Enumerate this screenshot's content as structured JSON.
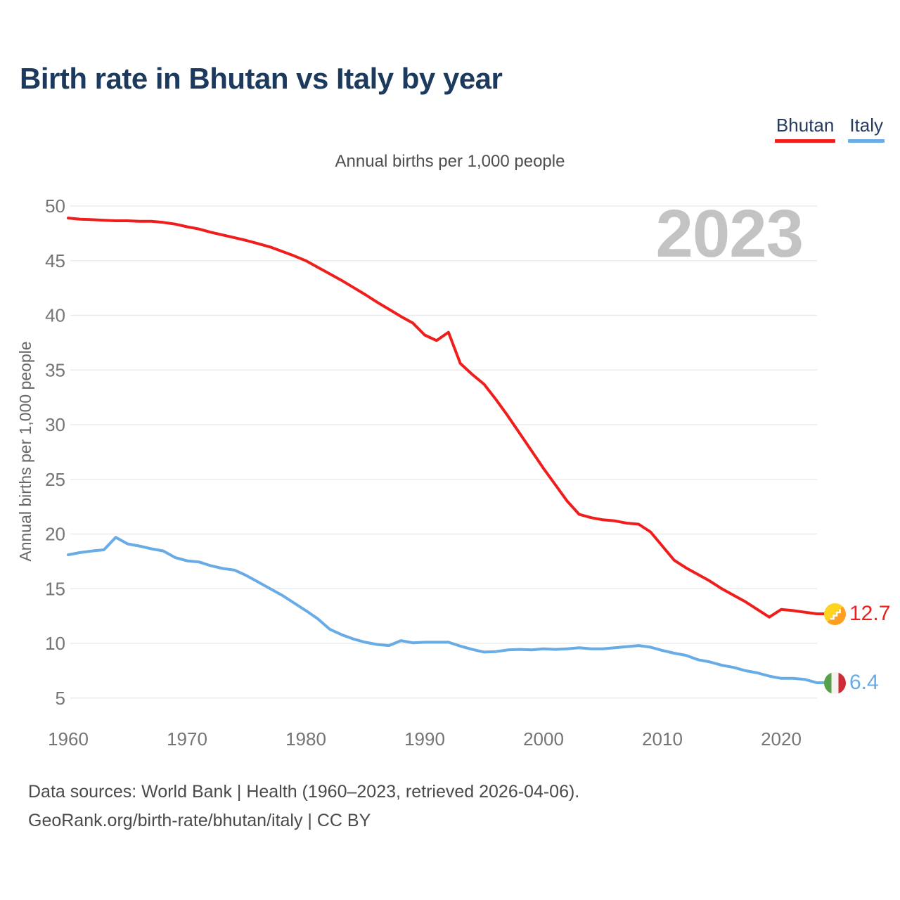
{
  "header": {
    "title": "Birth rate in Bhutan vs Italy by year",
    "watermark": "2023"
  },
  "chart_data": {
    "type": "line",
    "title": "Annual births per 1,000 people",
    "ylabel": "Annual births per 1,000 people",
    "x_start": 1960,
    "x_end": 2023,
    "xticks": [
      1960,
      1970,
      1980,
      1990,
      2000,
      2010,
      2020
    ],
    "yticks": [
      5,
      10,
      15,
      20,
      25,
      30,
      35,
      40,
      45,
      50
    ],
    "ylim": [
      3.5,
      51
    ],
    "grid": "horizontal",
    "legend_position": "top-right",
    "series": [
      {
        "name": "Bhutan",
        "color": "#ef1e1c",
        "end_label": "12.7",
        "flag_colors": [
          "#ffd31f",
          "#ff9e1f",
          "#ffffff"
        ],
        "values": [
          48.9,
          48.8,
          48.75,
          48.7,
          48.65,
          48.65,
          48.6,
          48.6,
          48.5,
          48.35,
          48.1,
          47.9,
          47.6,
          47.35,
          47.1,
          46.85,
          46.55,
          46.25,
          45.85,
          45.45,
          45.0,
          44.4,
          43.8,
          43.2,
          42.55,
          41.9,
          41.2,
          40.55,
          39.9,
          39.3,
          38.2,
          37.7,
          38.45,
          35.6,
          34.6,
          33.7,
          32.3,
          30.8,
          29.2,
          27.6,
          26.0,
          24.5,
          23.0,
          21.8,
          21.5,
          21.3,
          21.2,
          21.0,
          20.9,
          20.2,
          18.9,
          17.6,
          16.9,
          16.3,
          15.7,
          15.0,
          14.4,
          13.8,
          13.1,
          12.4,
          13.1,
          13.0,
          12.85,
          12.7
        ]
      },
      {
        "name": "Italy",
        "color": "#68abe5",
        "end_label": "6.4",
        "flag_colors": [
          "#56a049",
          "#f5f3f0",
          "#ce2b37"
        ],
        "values": [
          18.1,
          18.3,
          18.45,
          18.55,
          19.7,
          19.1,
          18.9,
          18.65,
          18.45,
          17.85,
          17.55,
          17.45,
          17.1,
          16.85,
          16.7,
          16.2,
          15.6,
          15.0,
          14.4,
          13.7,
          13.0,
          12.25,
          11.3,
          10.8,
          10.4,
          10.1,
          9.9,
          9.8,
          10.25,
          10.05,
          10.1,
          10.1,
          10.1,
          9.75,
          9.45,
          9.2,
          9.25,
          9.4,
          9.45,
          9.4,
          9.5,
          9.45,
          9.5,
          9.6,
          9.5,
          9.5,
          9.6,
          9.7,
          9.8,
          9.65,
          9.35,
          9.1,
          8.9,
          8.5,
          8.3,
          8.0,
          7.8,
          7.5,
          7.3,
          7.0,
          6.8,
          6.8,
          6.7,
          6.4
        ]
      }
    ]
  },
  "footer": {
    "line1": "Data sources: World Bank | Health (1960–2023, retrieved 2026-04-06).",
    "line2": "GeoRank.org/birth-rate/bhutan/italy | CC BY"
  }
}
